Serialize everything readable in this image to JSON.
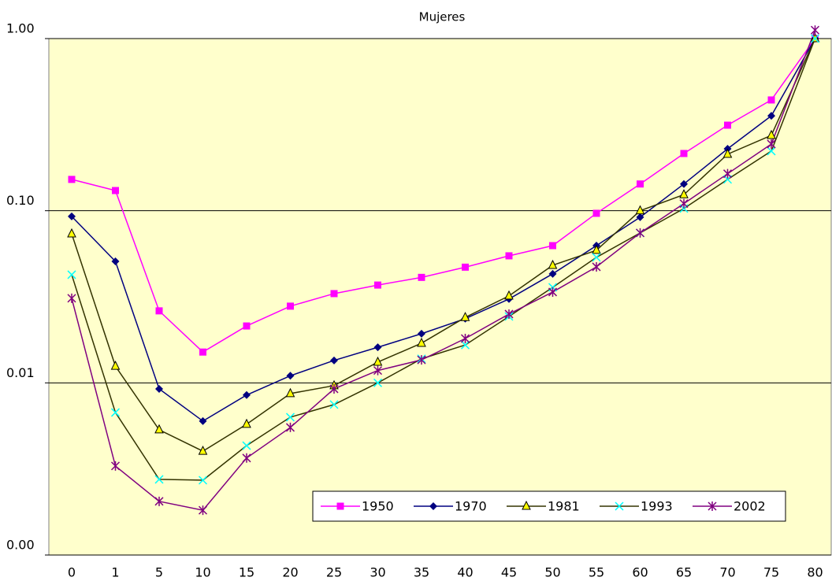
{
  "chart_data": {
    "type": "line",
    "title": "Mujeres",
    "categories": [
      "0",
      "1",
      "5",
      "10",
      "15",
      "20",
      "25",
      "30",
      "35",
      "40",
      "45",
      "50",
      "55",
      "60",
      "65",
      "70",
      "75",
      "80"
    ],
    "ylim": [
      0.001,
      1
    ],
    "log_scale_y": true,
    "grid": true,
    "yticks": [
      {
        "value": 0.001,
        "label": "0.00"
      },
      {
        "value": 0.01,
        "label": "0.01"
      },
      {
        "value": 0.1,
        "label": "0.10"
      },
      {
        "value": 1,
        "label": "1.00"
      }
    ],
    "plot_background": "#ffffcc",
    "legend_position": "bottom-right",
    "series": [
      {
        "name": "1950",
        "color": "#ff00ff",
        "marker": "square",
        "marker_color": "#ff00ff",
        "values": [
          0.152,
          0.131,
          0.0262,
          0.0151,
          0.0214,
          0.0279,
          0.033,
          0.037,
          0.041,
          0.047,
          0.0547,
          0.0627,
          0.0966,
          0.143,
          0.215,
          0.314,
          0.44,
          1
        ]
      },
      {
        "name": "1970",
        "color": "#000080",
        "marker": "diamond",
        "marker_color": "#000080",
        "values": [
          0.0927,
          0.0508,
          0.00923,
          0.006,
          0.0085,
          0.011,
          0.0135,
          0.0161,
          0.0193,
          0.0236,
          0.0307,
          0.043,
          0.0627,
          0.0917,
          0.143,
          0.229,
          0.356,
          1
        ]
      },
      {
        "name": "1981",
        "color": "#333300",
        "marker": "triangle",
        "marker_color": "#ffff00",
        "values": [
          0.0734,
          0.0125,
          0.00534,
          0.00401,
          0.00575,
          0.00867,
          0.00964,
          0.0132,
          0.017,
          0.024,
          0.032,
          0.0482,
          0.0589,
          0.1,
          0.124,
          0.213,
          0.274,
          1
        ]
      },
      {
        "name": "1993",
        "color": "#333300",
        "marker": "x",
        "marker_color": "#00ffff",
        "values": [
          0.0425,
          0.00673,
          0.00275,
          0.00272,
          0.00432,
          0.00632,
          0.00748,
          0.01,
          0.0138,
          0.0166,
          0.0243,
          0.0359,
          0.0536,
          0.0743,
          0.103,
          0.152,
          0.222,
          1
        ]
      },
      {
        "name": "2002",
        "color": "#800080",
        "marker": "asterisk",
        "marker_color": "#800080",
        "values": [
          0.031,
          0.00329,
          0.00205,
          0.00182,
          0.00366,
          0.00551,
          0.00923,
          0.0118,
          0.0136,
          0.0181,
          0.0251,
          0.0337,
          0.0472,
          0.0743,
          0.11,
          0.164,
          0.244,
          1.12
        ]
      }
    ]
  }
}
